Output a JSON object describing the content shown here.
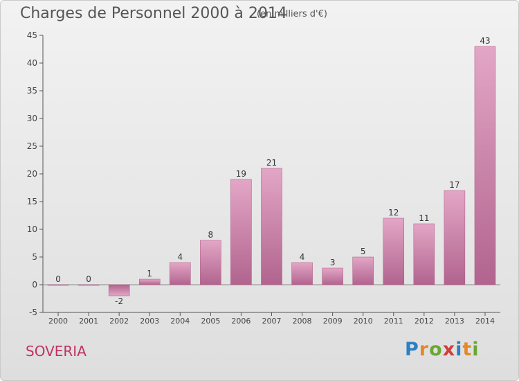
{
  "chart_data": {
    "type": "bar",
    "title": "Charges de Personnel 2000 à 2014",
    "subtitle": "(en milliers d'€)",
    "categories": [
      "2000",
      "2001",
      "2002",
      "2003",
      "2004",
      "2005",
      "2006",
      "2007",
      "2008",
      "2009",
      "2010",
      "2011",
      "2012",
      "2013",
      "2014"
    ],
    "values": [
      0,
      0,
      -2,
      1,
      4,
      8,
      19,
      21,
      4,
      3,
      5,
      12,
      11,
      17,
      43
    ],
    "value_labels": [
      "0",
      "0",
      "-2",
      "1",
      "4",
      "8",
      "19",
      "21",
      "4",
      "3",
      "5",
      "12",
      "11",
      "17",
      "43"
    ],
    "ylim": [
      -5,
      45
    ],
    "yticks": [
      -5,
      0,
      5,
      10,
      15,
      20,
      25,
      30,
      35,
      40,
      45
    ],
    "ytick_labels": [
      "-5",
      "0",
      "5",
      "10",
      "15",
      "20",
      "25",
      "30",
      "35",
      "40",
      "45"
    ],
    "grid": false,
    "bar_color": "#d683ae"
  },
  "commune": "SOVERIA",
  "logo": {
    "letters": [
      "P",
      "r",
      "o",
      "x",
      "i",
      "t",
      "i"
    ],
    "colors": [
      "#2b7fc2",
      "#e3892b",
      "#6aa832",
      "#d43c3c",
      "#2b7fc2",
      "#e3892b",
      "#6aa832"
    ]
  }
}
